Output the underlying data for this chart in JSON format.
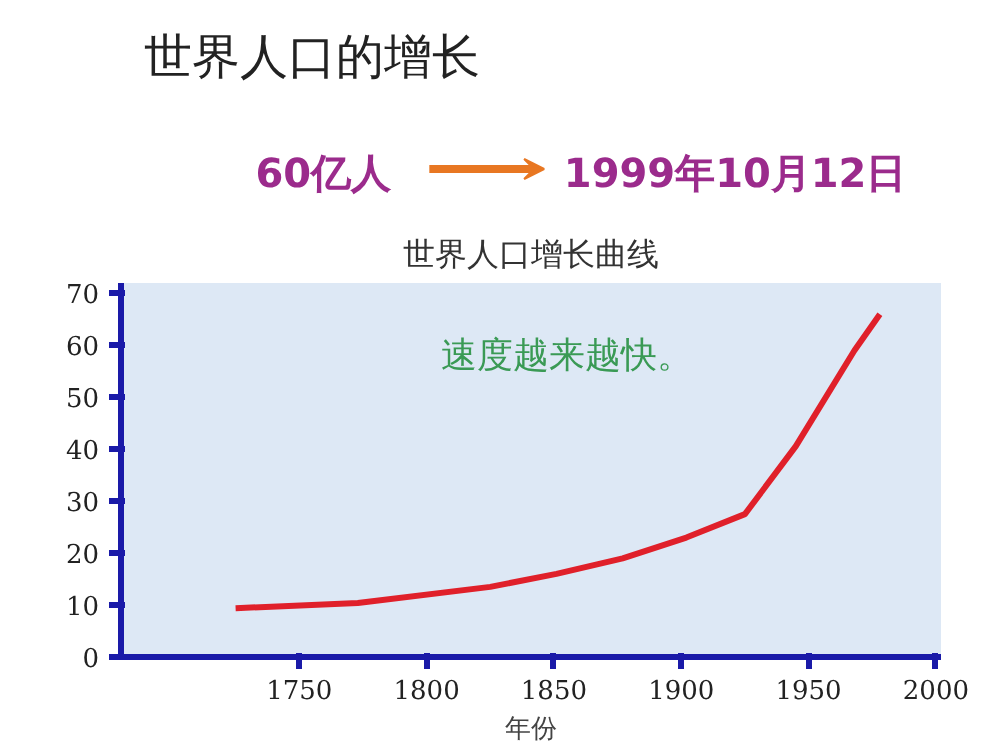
{
  "chart_data": {
    "type": "line",
    "title": "世界人口的增长",
    "subtitle": "世界人口增长曲线",
    "xlabel": "年份",
    "annotations": [
      "60亿人",
      "1999年10月12日",
      "速度越来越快。"
    ],
    "x": [
      1725,
      1773,
      1825,
      1851,
      1877,
      1902,
      1925,
      1945,
      1968,
      1978
    ],
    "series": [
      {
        "color": "#e0202a",
        "values": [
          9.4,
          10.4,
          13.5,
          16,
          19,
          23,
          27.5,
          40.6,
          59,
          66
        ]
      }
    ],
    "xlim": [
      1680,
      2002
    ],
    "xticks": [
      1750,
      1800,
      1850,
      1900,
      1950,
      2000
    ],
    "ylim": [
      0,
      72
    ],
    "yticks": [
      0,
      10,
      20,
      30,
      40,
      50,
      60,
      70
    ],
    "grid": false,
    "marker": "none",
    "line_style": "solid"
  }
}
